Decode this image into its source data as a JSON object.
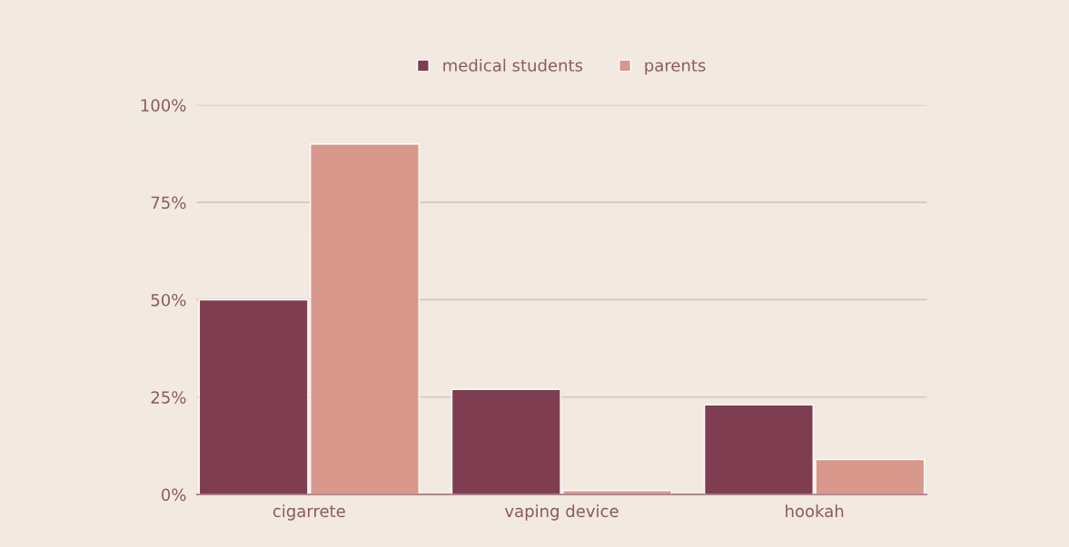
{
  "chart_data": {
    "type": "bar",
    "categories": [
      "cigarrete",
      "vaping device",
      "hookah"
    ],
    "series": [
      {
        "name": "medical students",
        "color": "#7f3d51",
        "values": [
          50,
          27,
          23
        ]
      },
      {
        "name": "parents",
        "color": "#d9988c",
        "values": [
          90,
          1,
          9
        ]
      }
    ],
    "ylim": [
      0,
      100
    ],
    "yticks": [
      {
        "value": 0,
        "label": "0%"
      },
      {
        "value": 25,
        "label": "25%"
      },
      {
        "value": 50,
        "label": "50%"
      },
      {
        "value": 75,
        "label": "75%"
      },
      {
        "value": 100,
        "label": "100%"
      }
    ],
    "grid": "y",
    "legend": "top"
  }
}
